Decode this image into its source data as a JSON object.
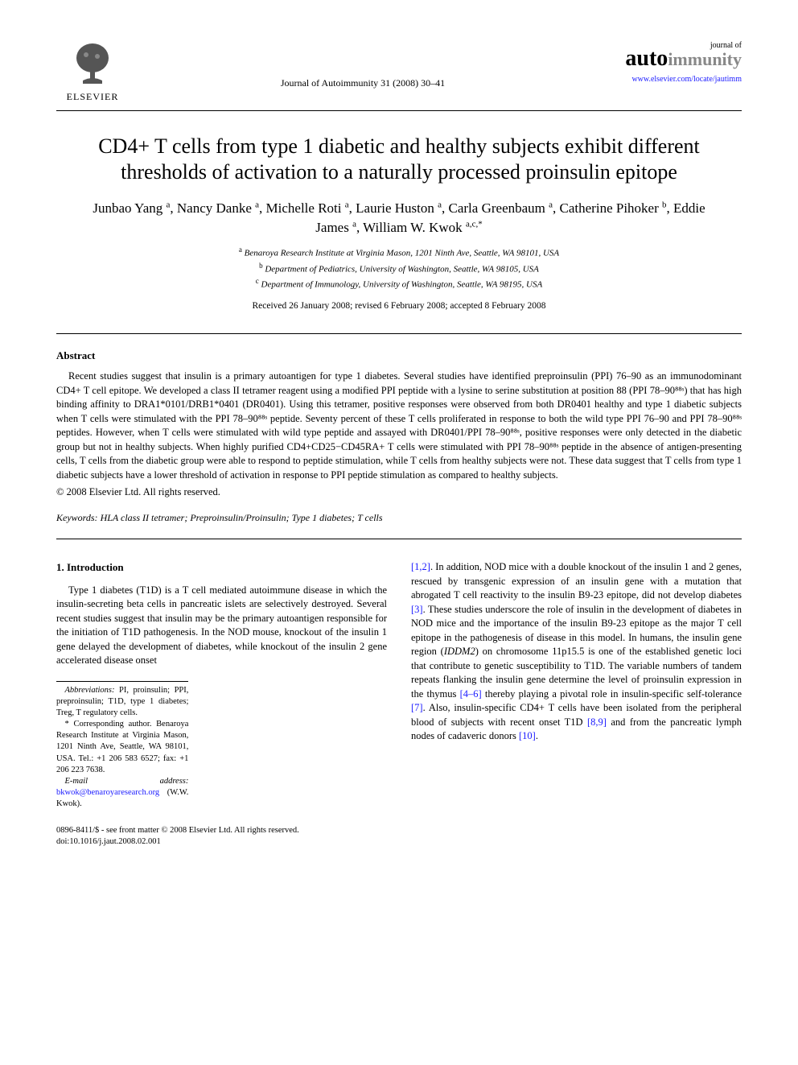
{
  "header": {
    "elsevier_label": "ELSEVIER",
    "journal_ref": "Journal of Autoimmunity 31 (2008) 30–41",
    "logo_top": "journal of",
    "logo_auto": "auto",
    "logo_immunity": "immunity",
    "journal_url": "www.elsevier.com/locate/jautimm"
  },
  "title": "CD4+ T cells from type 1 diabetic and healthy subjects exhibit different thresholds of activation to a naturally processed proinsulin epitope",
  "authors_html": "Junbao Yang <sup>a</sup>, Nancy Danke <sup>a</sup>, Michelle Roti <sup>a</sup>, Laurie Huston <sup>a</sup>, Carla Greenbaum <sup>a</sup>, Catherine Pihoker <sup>b</sup>, Eddie James <sup>a</sup>, William W. Kwok <sup>a,c,*</sup>",
  "affiliations": {
    "a": "Benaroya Research Institute at Virginia Mason, 1201 Ninth Ave, Seattle, WA 98101, USA",
    "b": "Department of Pediatrics, University of Washington, Seattle, WA 98105, USA",
    "c": "Department of Immunology, University of Washington, Seattle, WA 98195, USA"
  },
  "dates": "Received 26 January 2008; revised 6 February 2008; accepted 8 February 2008",
  "abstract": {
    "heading": "Abstract",
    "text": "Recent studies suggest that insulin is a primary autoantigen for type 1 diabetes. Several studies have identified preproinsulin (PPI) 76–90 as an immunodominant CD4+ T cell epitope. We developed a class II tetramer reagent using a modified PPI peptide with a lysine to serine substitution at position 88 (PPI 78–90⁸⁸ˢ) that has high binding affinity to DRA1*0101/DRB1*0401 (DR0401). Using this tetramer, positive responses were observed from both DR0401 healthy and type 1 diabetic subjects when T cells were stimulated with the PPI 78–90⁸⁸ˢ peptide. Seventy percent of these T cells proliferated in response to both the wild type PPI 76–90 and PPI 78–90⁸⁸ˢ peptides. However, when T cells were stimulated with wild type peptide and assayed with DR0401/PPI 78–90⁸⁸ˢ, positive responses were only detected in the diabetic group but not in healthy subjects. When highly purified CD4+CD25−CD45RA+ T cells were stimulated with PPI 78–90⁸⁸ˢ peptide in the absence of antigen-presenting cells, T cells from the diabetic group were able to respond to peptide stimulation, while T cells from healthy subjects were not. These data suggest that T cells from type 1 diabetic subjects have a lower threshold of activation in response to PPI peptide stimulation as compared to healthy subjects.",
    "copyright": "© 2008 Elsevier Ltd. All rights reserved."
  },
  "keywords": {
    "label": "Keywords:",
    "text": "HLA class II tetramer; Preproinsulin/Proinsulin; Type 1 diabetes; T cells"
  },
  "intro": {
    "heading": "1. Introduction",
    "col1": "Type 1 diabetes (T1D) is a T cell mediated autoimmune disease in which the insulin-secreting beta cells in pancreatic islets are selectively destroyed. Several recent studies suggest that insulin may be the primary autoantigen responsible for the initiation of T1D pathogenesis. In the NOD mouse, knockout of the insulin 1 gene delayed the development of diabetes, while knockout of the insulin 2 gene accelerated disease onset",
    "col2_parts": {
      "p1a": ". In addition, NOD mice with a double knockout of the insulin 1 and 2 genes, rescued by transgenic expression of an insulin gene with a mutation that abrogated T cell reactivity to the insulin B9-23 epitope, did not develop diabetes ",
      "p1b": ". These studies underscore the role of insulin in the development of diabetes in NOD mice and the importance of the insulin B9-23 epitope as the major T cell epitope in the pathogenesis of disease in this model. In humans, the insulin gene region (",
      "iddm2": "IDDM2",
      "p1c": ") on chromosome 11p15.5 is one of the established genetic loci that contribute to genetic susceptibility to T1D. The variable numbers of tandem repeats flanking the insulin gene determine the level of proinsulin expression in the thymus ",
      "p1d": " thereby playing a pivotal role in insulin-specific self-tolerance ",
      "p1e": ". Also, insulin-specific CD4+ T cells have been isolated from the peripheral blood of subjects with recent onset T1D ",
      "p1f": " and from the pancreatic lymph nodes of cadaveric donors ",
      "p1g": "."
    },
    "refs": {
      "r12": "[1,2]",
      "r3": "[3]",
      "r46": "[4–6]",
      "r7": "[7]",
      "r89": "[8,9]",
      "r10": "[10]"
    }
  },
  "footnotes": {
    "abbrev_label": "Abbreviations:",
    "abbrev_text": " PI, proinsulin; PPI, preproinsulin; T1D, type 1 diabetes; Treg, T regulatory cells.",
    "corr_label": "* Corresponding author.",
    "corr_text": " Benaroya Research Institute at Virginia Mason, 1201 Ninth Ave, Seattle, WA 98101, USA. Tel.: +1 206 583 6527; fax: +1 206 223 7638.",
    "email_label": "E-mail address:",
    "email": "bkwok@benaroyaresearch.org",
    "email_suffix": " (W.W. Kwok)."
  },
  "footer": {
    "line1": "0896-8411/$ - see front matter © 2008 Elsevier Ltd. All rights reserved.",
    "line2": "doi:10.1016/j.jaut.2008.02.001"
  },
  "colors": {
    "text": "#000000",
    "link": "#1a1aff",
    "logo_gray": "#888888",
    "tree_fill": "#555555"
  }
}
